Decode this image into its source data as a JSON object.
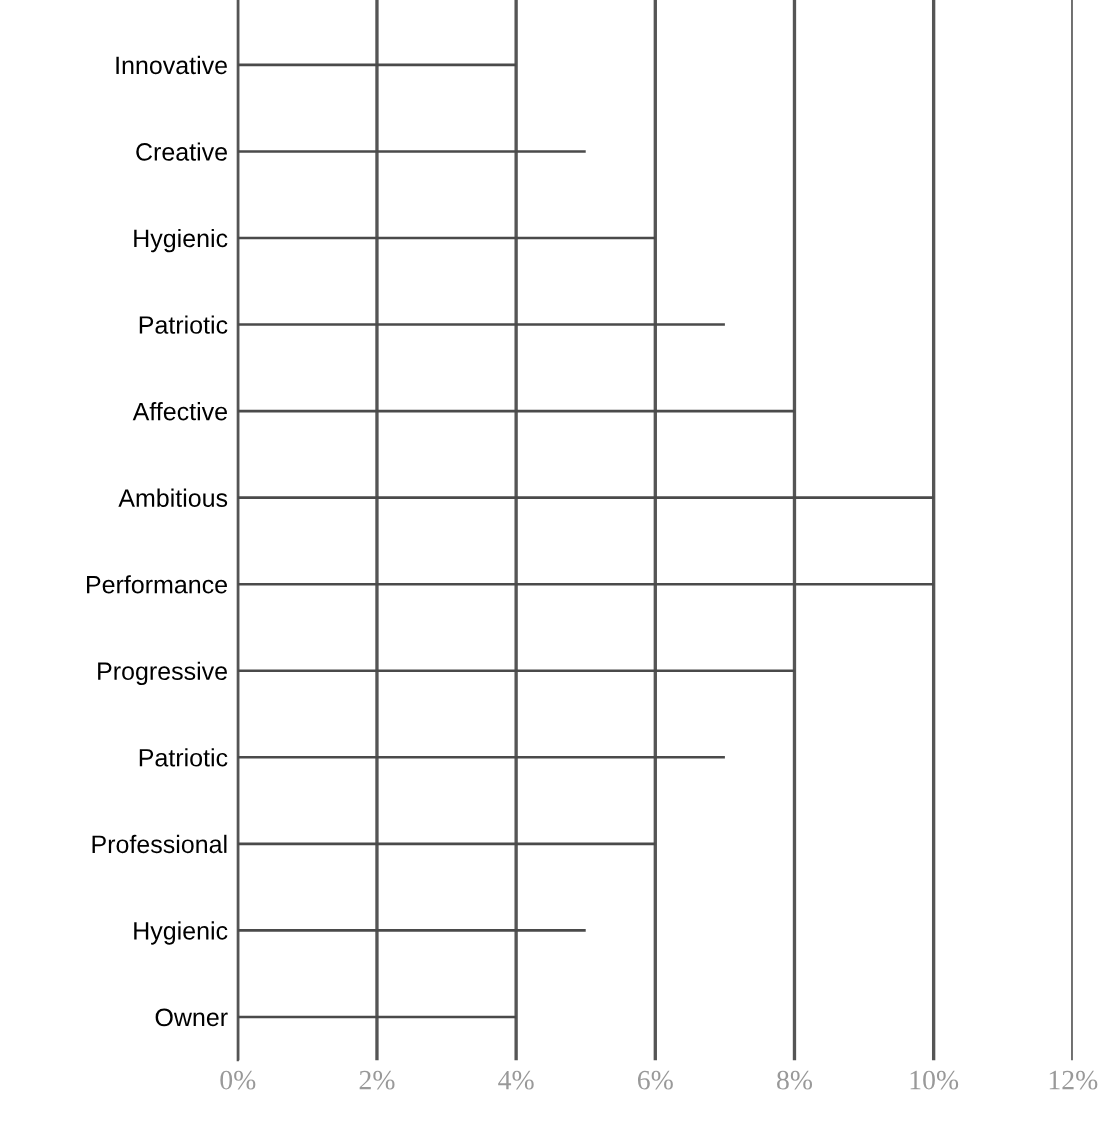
{
  "chart_data": {
    "type": "bar",
    "orientation": "horizontal",
    "categories": [
      "Innovative",
      "Creative",
      "Hygienic",
      "Patriotic",
      "Affective",
      "Ambitious",
      "Performance",
      "Progressive",
      "Patriotic",
      "Professional",
      "Hygienic",
      "Owner"
    ],
    "values": [
      4,
      5,
      6,
      7,
      8,
      10,
      10,
      8,
      7,
      6,
      5,
      4
    ],
    "color": "#4a4a4a",
    "xlim": [
      0,
      12
    ],
    "xticks": [
      {
        "value": 0,
        "label": "0%"
      },
      {
        "value": 2,
        "label": "2%"
      },
      {
        "value": 4,
        "label": "4%"
      },
      {
        "value": 6,
        "label": "6%"
      },
      {
        "value": 8,
        "label": "8%"
      },
      {
        "value": 10,
        "label": "10%"
      },
      {
        "value": 12,
        "label": "12%"
      }
    ],
    "grid": "x"
  }
}
